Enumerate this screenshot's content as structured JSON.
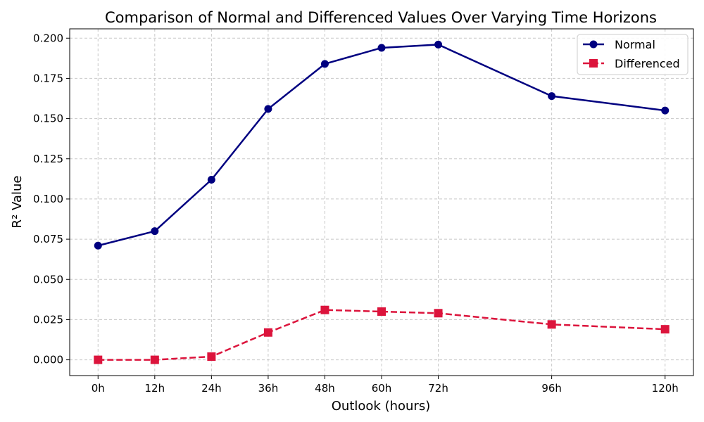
{
  "chart_data": {
    "type": "line",
    "title": "Comparison of Normal and Differenced Values Over Varying Time Horizons",
    "xlabel": "Outlook (hours)",
    "ylabel": "R² Value",
    "x": [
      0,
      12,
      24,
      36,
      48,
      60,
      72,
      96,
      120
    ],
    "x_tick_labels": [
      "0h",
      "12h",
      "24h",
      "36h",
      "48h",
      "60h",
      "72h",
      "96h",
      "120h"
    ],
    "xlim": [
      -6,
      126
    ],
    "ylim": [
      -0.0098,
      0.2058
    ],
    "y_ticks": [
      0.0,
      0.025,
      0.05,
      0.075,
      0.1,
      0.125,
      0.15,
      0.175,
      0.2
    ],
    "y_tick_labels": [
      "0.000",
      "0.025",
      "0.050",
      "0.075",
      "0.100",
      "0.125",
      "0.150",
      "0.175",
      "0.200"
    ],
    "grid": true,
    "legend_position": "top-right",
    "series": [
      {
        "name": "Normal",
        "values": [
          0.071,
          0.08,
          0.112,
          0.156,
          0.184,
          0.194,
          0.196,
          0.164,
          0.155
        ],
        "color": "#000080",
        "line_style": "solid",
        "marker": "circle"
      },
      {
        "name": "Differenced",
        "values": [
          0.0,
          0.0,
          0.002,
          0.017,
          0.031,
          0.03,
          0.029,
          0.022,
          0.019
        ],
        "color": "#dc143c",
        "line_style": "dashed",
        "marker": "square"
      }
    ]
  }
}
